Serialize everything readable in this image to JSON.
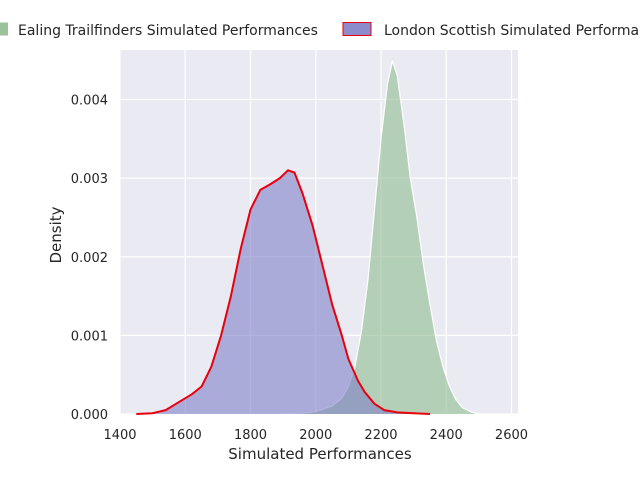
{
  "chart_data": {
    "type": "area",
    "title": "",
    "xlabel": "Simulated Performances",
    "ylabel": "Density",
    "xlim": [
      1400,
      2620
    ],
    "ylim": [
      0,
      0.00463
    ],
    "x_ticks": [
      1400,
      1600,
      1800,
      2000,
      2200,
      2400,
      2600
    ],
    "y_ticks": [
      0.0,
      0.001,
      0.002,
      0.003,
      0.004
    ],
    "x_tick_labels": [
      "1400",
      "1600",
      "1800",
      "2000",
      "2200",
      "2400",
      "2600"
    ],
    "y_tick_labels": [
      "0.000",
      "0.001",
      "0.002",
      "0.003",
      "0.004"
    ],
    "grid": true,
    "legend_position": "top",
    "series": [
      {
        "name": "Ealing Trailfinders Simulated Performances",
        "fill_color": "#8fbc8f",
        "line_color": "#ffffff",
        "points": [
          [
            1880,
            0.0
          ],
          [
            1960,
            1e-05
          ],
          [
            2000,
            3e-05
          ],
          [
            2050,
            0.0001
          ],
          [
            2080,
            0.0002
          ],
          [
            2100,
            0.00035
          ],
          [
            2120,
            0.0006
          ],
          [
            2140,
            0.00105
          ],
          [
            2160,
            0.0017
          ],
          [
            2180,
            0.0026
          ],
          [
            2200,
            0.0035
          ],
          [
            2220,
            0.0042
          ],
          [
            2235,
            0.00449
          ],
          [
            2250,
            0.0043
          ],
          [
            2270,
            0.0037
          ],
          [
            2290,
            0.003
          ],
          [
            2310,
            0.0025
          ],
          [
            2330,
            0.0019
          ],
          [
            2350,
            0.0014
          ],
          [
            2370,
            0.00093
          ],
          [
            2390,
            0.0006
          ],
          [
            2410,
            0.00035
          ],
          [
            2430,
            0.00018
          ],
          [
            2450,
            8e-05
          ],
          [
            2480,
            2e-05
          ],
          [
            2500,
            0.0
          ]
        ]
      },
      {
        "name": "London Scottish Simulated Performances",
        "fill_color": "#8080c8",
        "line_color": "#e8000b",
        "points": [
          [
            1450,
            0.0
          ],
          [
            1500,
            1e-05
          ],
          [
            1540,
            5e-05
          ],
          [
            1580,
            0.00015
          ],
          [
            1620,
            0.00025
          ],
          [
            1650,
            0.00035
          ],
          [
            1680,
            0.0006
          ],
          [
            1710,
            0.001
          ],
          [
            1740,
            0.0015
          ],
          [
            1770,
            0.0021
          ],
          [
            1800,
            0.0026
          ],
          [
            1830,
            0.00285
          ],
          [
            1860,
            0.00292
          ],
          [
            1890,
            0.003
          ],
          [
            1915,
            0.0031
          ],
          [
            1935,
            0.00307
          ],
          [
            1960,
            0.0028
          ],
          [
            1990,
            0.0024
          ],
          [
            2020,
            0.0019
          ],
          [
            2050,
            0.0014
          ],
          [
            2080,
            0.001
          ],
          [
            2100,
            0.0007
          ],
          [
            2130,
            0.00042
          ],
          [
            2150,
            0.00028
          ],
          [
            2180,
            0.00013
          ],
          [
            2210,
            5e-05
          ],
          [
            2250,
            2e-05
          ],
          [
            2300,
            1e-05
          ],
          [
            2350,
            0.0
          ]
        ]
      }
    ]
  }
}
